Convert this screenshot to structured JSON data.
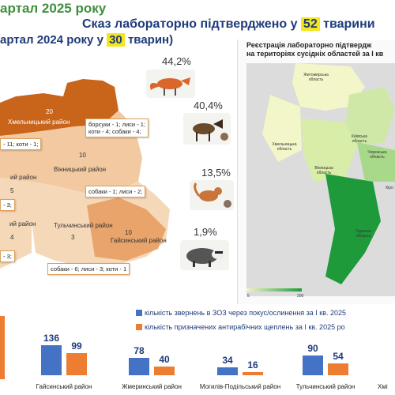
{
  "header": {
    "line1": "артал 2025 року",
    "line2_pre": "Сказ лабораторно підтверджено у",
    "line2_num": "52",
    "line2_post": "тварини",
    "line3_pre": "артал 2024 року у",
    "line3_num": "30",
    "line3_post": "тварин)"
  },
  "animals": [
    {
      "pct": "44,2%",
      "icon": "fox-icon"
    },
    {
      "pct": "40,4%",
      "icon": "dog-icon"
    },
    {
      "pct": "13,5%",
      "icon": "cat-icon"
    },
    {
      "pct": "1,9%",
      "icon": "badger-icon"
    }
  ],
  "region_map": {
    "districts": [
      {
        "name": "Хмельницький район",
        "count": "20"
      },
      {
        "name": "Вінницький район",
        "count": "10"
      },
      {
        "name": "Тульчинський район",
        "count": "3"
      },
      {
        "name": "Гайсинський район",
        "count": "10"
      },
      {
        "name": "",
        "count": "5"
      },
      {
        "name": "",
        "count": "4"
      },
      {
        "name": "Жмеринський район",
        "count": ""
      },
      {
        "name": "Тульчинський район",
        "count": ""
      }
    ],
    "notes": [
      "- 11; коти - 1;",
      "борсуки - 1; лиси - 1;\nкоти - 4; собаки - 4;",
      "собаки - 1; лиси - 2;",
      "- 3;",
      "- 3;",
      "собаки - 6; лиси - 3; коти - 1"
    ],
    "side_labels": [
      "5",
      "4"
    ]
  },
  "ukraine_map": {
    "title": "Реєстрація лабораторно підтвердж\nна територіях сусідніх областей за І кв",
    "oblasts": [
      "Житомирська область",
      "Київська область",
      "Хмельницька область",
      "Вінницька область",
      "Черкаська область",
      "Одеська область",
      "Кіро"
    ],
    "scale_min": "5",
    "scale_max": "200",
    "colors": {
      "low": "#f3f6c8",
      "mid": "#a8d98a",
      "high": "#1f9a3a"
    }
  },
  "chart_data": {
    "type": "bar",
    "series": [
      {
        "name": "кількість звернень в ЗОЗ через покус/ослинення за І кв. 2025",
        "color": "#4472c4"
      },
      {
        "name": "кількість призначених антирабічних щеплень за І кв. 2025 ро",
        "color": "#ed7d31"
      }
    ],
    "categories": [
      "Гайсинський район",
      "Жмеринський район",
      "Могилів-Подільський район",
      "Тульчинський район",
      "Хмі"
    ],
    "values_blue": [
      136,
      78,
      34,
      90,
      null
    ],
    "values_orange": [
      99,
      40,
      16,
      54,
      null
    ]
  }
}
